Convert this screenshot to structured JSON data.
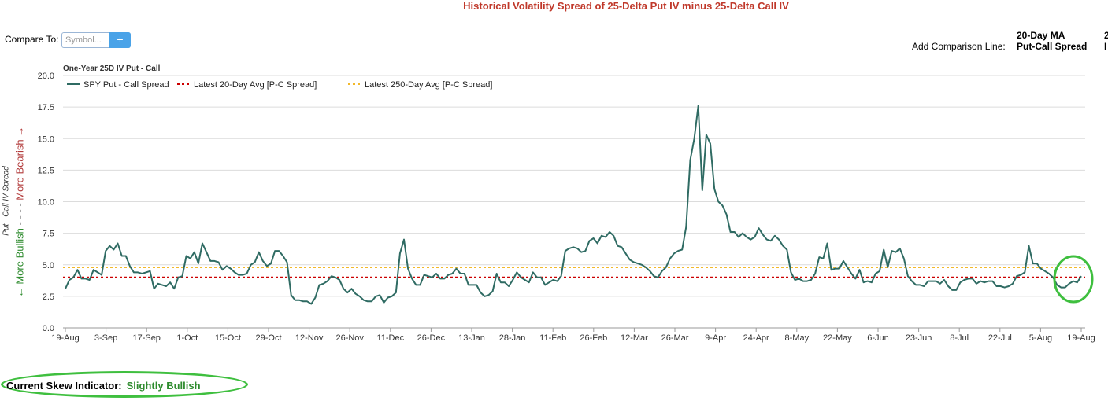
{
  "header": {
    "title": "Historical Volatility Spread of 25-Delta Put IV minus 25-Delta Call IV",
    "compare_label": "Compare To:",
    "compare_placeholder": "Symbol...",
    "add_button": "+",
    "ma_label": "20-Day MA",
    "add_comparison_label": "Add Comparison Line:",
    "comparison_value": "Put-Call Spread",
    "edge_text_1": "2",
    "edge_text_2": "I"
  },
  "chart_data": {
    "type": "line",
    "title": "One-Year 25D IV Put - Call",
    "ylabel": "Put - Call IV Spread",
    "ylim": [
      0,
      20
    ],
    "yticks": [
      "0.0",
      "2.5",
      "5.0",
      "7.5",
      "10.0",
      "12.5",
      "15.0",
      "17.5",
      "20.0"
    ],
    "xticks": [
      "19-Aug",
      "3-Sep",
      "17-Sep",
      "1-Oct",
      "15-Oct",
      "29-Oct",
      "12-Nov",
      "26-Nov",
      "11-Dec",
      "26-Dec",
      "13-Jan",
      "28-Jan",
      "11-Feb",
      "26-Feb",
      "12-Mar",
      "26-Mar",
      "9-Apr",
      "24-Apr",
      "8-May",
      "22-May",
      "6-Jun",
      "23-Jun",
      "8-Jul",
      "22-Jul",
      "5-Aug",
      "19-Aug"
    ],
    "grid": true,
    "legend": "top-left",
    "series": [
      {
        "name": "SPY Put - Call Spread",
        "color": "#2f6b63",
        "values": [
          3.1,
          3.8,
          4.0,
          4.6,
          3.9,
          3.9,
          3.8,
          4.6,
          4.4,
          4.2,
          6.1,
          6.5,
          6.2,
          6.7,
          5.7,
          5.7,
          4.9,
          4.4,
          4.4,
          4.3,
          4.4,
          4.5,
          3.1,
          3.5,
          3.4,
          3.3,
          3.6,
          3.1,
          4.0,
          4.1,
          5.7,
          5.5,
          6.0,
          5.1,
          6.7,
          6.0,
          5.3,
          5.3,
          5.2,
          4.6,
          4.9,
          4.7,
          4.4,
          4.2,
          4.2,
          4.3,
          5.0,
          5.2,
          6.0,
          5.3,
          4.9,
          5.1,
          6.1,
          6.1,
          5.7,
          5.2,
          2.6,
          2.2,
          2.2,
          2.1,
          2.1,
          1.9,
          2.4,
          3.4,
          3.5,
          3.7,
          4.1,
          4.0,
          3.8,
          3.1,
          2.8,
          3.1,
          2.7,
          2.5,
          2.2,
          2.1,
          2.1,
          2.5,
          2.6,
          2.0,
          2.4,
          2.5,
          2.8,
          5.9,
          7.0,
          4.7,
          3.9,
          3.4,
          3.4,
          4.2,
          4.1,
          4.0,
          4.3,
          3.9,
          3.9,
          4.2,
          4.3,
          4.7,
          4.3,
          4.3,
          3.4,
          3.4,
          3.4,
          2.8,
          2.5,
          2.6,
          2.9,
          4.3,
          3.6,
          3.6,
          3.3,
          3.8,
          4.4,
          4.0,
          3.8,
          3.6,
          4.4,
          4.0,
          4.0,
          3.4,
          3.6,
          3.8,
          3.7,
          4.1,
          6.1,
          6.3,
          6.4,
          6.3,
          6.0,
          6.1,
          6.9,
          7.1,
          6.7,
          7.3,
          7.2,
          7.6,
          7.3,
          6.5,
          6.4,
          5.9,
          5.4,
          5.2,
          5.1,
          5.0,
          4.8,
          4.5,
          4.1,
          4.0,
          4.5,
          4.8,
          5.5,
          5.9,
          6.1,
          6.2,
          8.0,
          13.3,
          15.0,
          17.6,
          10.9,
          15.3,
          14.6,
          11.0,
          10.0,
          9.7,
          9.0,
          7.6,
          7.6,
          7.2,
          7.5,
          7.2,
          7.0,
          7.2,
          7.9,
          7.4,
          7.0,
          6.9,
          7.3,
          7.0,
          6.5,
          6.2,
          4.4,
          3.8,
          3.9,
          3.7,
          3.7,
          3.8,
          4.3,
          5.6,
          5.5,
          6.7,
          4.6,
          4.7,
          4.7,
          5.3,
          4.8,
          4.3,
          3.9,
          4.6,
          3.6,
          3.7,
          3.6,
          4.3,
          4.5,
          6.2,
          4.8,
          6.1,
          6.0,
          6.3,
          5.5,
          4.1,
          3.7,
          3.4,
          3.4,
          3.3,
          3.7,
          3.7,
          3.7,
          3.5,
          3.8,
          3.3,
          3.0,
          3.0,
          3.6,
          3.8,
          3.9,
          3.9,
          3.5,
          3.7,
          3.6,
          3.7,
          3.7,
          3.3,
          3.3,
          3.2,
          3.3,
          3.5,
          4.1,
          4.2,
          4.4,
          6.5,
          5.1,
          5.1,
          4.7,
          4.5,
          4.3,
          4.0,
          3.4,
          3.2,
          3.2,
          3.5,
          3.7,
          3.6,
          4.1
        ]
      },
      {
        "name": "Latest 20-Day Avg [P-C Spread]",
        "color": "#cc0000",
        "value": 4.0
      },
      {
        "name": "Latest 250-Day Avg [P-C Spread]",
        "color": "#f2b82a",
        "value": 4.8
      }
    ]
  },
  "axis_side": {
    "bullish": "← More Bullish",
    "dashes": " - - - - ",
    "bearish": "More Bearish →"
  },
  "indicator": {
    "label": "Current Skew Indicator:",
    "value": "Slightly Bullish"
  }
}
